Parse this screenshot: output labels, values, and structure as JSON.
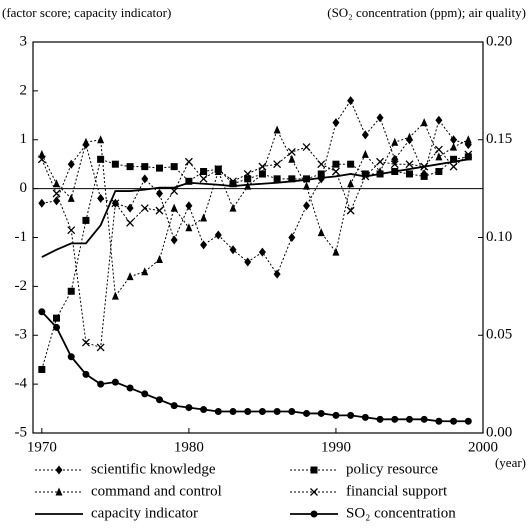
{
  "chart_data": {
    "type": "line",
    "y_axis_label": "(factor score; capacity indicator)",
    "y2_axis_label": "(SO₂ concentration (ppm); air quality)",
    "x_axis_label": "(year)",
    "x": [
      1970,
      1971,
      1972,
      1973,
      1974,
      1975,
      1976,
      1977,
      1978,
      1979,
      1980,
      1981,
      1982,
      1983,
      1984,
      1985,
      1986,
      1987,
      1988,
      1989,
      1990,
      1991,
      1992,
      1993,
      1994,
      1995,
      1996,
      1997,
      1998,
      1999
    ],
    "xlim": [
      1969.4,
      2000
    ],
    "xticks": [
      1970,
      1980,
      1990,
      2000
    ],
    "ylim": [
      -5,
      3
    ],
    "yticks": [
      3,
      2,
      1,
      0,
      -1,
      -2,
      -3,
      -4,
      -5
    ],
    "y2lim": [
      0,
      0.2
    ],
    "y2ticks": [
      {
        "value": 0.2,
        "label": "0.20"
      },
      0.15,
      {
        "value": 0.1,
        "label": "0.10"
      },
      0.05,
      {
        "value": 0,
        "label": "0.00"
      }
    ],
    "series": [
      {
        "name": "scientific knowledge",
        "color": "#000000",
        "marker": "diamond",
        "dash": "dotted",
        "values": [
          -0.3,
          -0.25,
          0.5,
          0.9,
          -0.2,
          -0.3,
          -0.4,
          0.2,
          -0.1,
          -1.05,
          -0.35,
          -1.15,
          -0.95,
          -1.25,
          -1.5,
          -1.3,
          -1.75,
          -1.0,
          -0.35,
          0.2,
          1.35,
          1.8,
          1.1,
          1.45,
          0.6,
          1.0,
          0.3,
          1.4,
          1.0,
          0.9
        ]
      },
      {
        "name": "policy resource",
        "color": "#000000",
        "marker": "square",
        "dash": "dotted",
        "values": [
          -3.7,
          -2.65,
          -2.1,
          -0.65,
          0.6,
          0.5,
          0.45,
          0.45,
          0.42,
          0.45,
          0.15,
          0.35,
          0.4,
          0.1,
          0.2,
          0.3,
          0.2,
          0.2,
          0.2,
          0.3,
          0.5,
          0.5,
          0.3,
          0.3,
          0.35,
          0.3,
          0.25,
          0.35,
          0.6,
          0.65
        ]
      },
      {
        "name": "command and control",
        "color": "#000000",
        "marker": "triangle",
        "dash": "dotted",
        "values": [
          0.7,
          0.1,
          -0.2,
          0.95,
          1.0,
          -2.2,
          -1.8,
          -1.7,
          -1.45,
          -0.4,
          -0.8,
          -0.6,
          0.35,
          -0.4,
          0.05,
          0.3,
          1.2,
          0.6,
          0.05,
          -0.9,
          -1.3,
          0.1,
          0.7,
          0.35,
          0.95,
          1.05,
          1.35,
          0.65,
          0.85,
          1.0
        ]
      },
      {
        "name": "financial support",
        "color": "#000000",
        "marker": "cross",
        "dash": "dotted",
        "values": [
          0.6,
          -0.1,
          -0.85,
          -3.15,
          -3.25,
          -0.3,
          -0.7,
          -0.4,
          -0.45,
          -0.05,
          0.55,
          0.2,
          0.4,
          0.15,
          0.3,
          0.45,
          0.5,
          0.75,
          0.85,
          0.5,
          0.35,
          -0.45,
          0.25,
          0.55,
          0.5,
          0.5,
          0.45,
          0.8,
          0.45,
          0.7
        ]
      },
      {
        "name": "capacity indicator",
        "color": "#000000",
        "marker": "none",
        "dash": "solid",
        "values": [
          -1.4,
          -1.25,
          -1.12,
          -1.12,
          -0.75,
          -0.05,
          -0.05,
          -0.02,
          0.02,
          0.02,
          0.12,
          0.1,
          0.08,
          0.05,
          0.08,
          0.1,
          0.12,
          0.15,
          0.18,
          0.22,
          0.25,
          0.3,
          0.25,
          0.3,
          0.35,
          0.4,
          0.45,
          0.5,
          0.55,
          0.6
        ]
      },
      {
        "name": "SO₂ concentration",
        "color": "#000000",
        "marker": "circle",
        "dash": "solid",
        "axis": "y2",
        "values": [
          0.062,
          0.054,
          0.039,
          0.03,
          0.025,
          0.026,
          0.023,
          0.02,
          0.017,
          0.014,
          0.013,
          0.012,
          0.011,
          0.011,
          0.011,
          0.011,
          0.011,
          0.011,
          0.01,
          0.01,
          0.009,
          0.009,
          0.008,
          0.007,
          0.007,
          0.007,
          0.007,
          0.006,
          0.006,
          0.006
        ]
      }
    ]
  }
}
